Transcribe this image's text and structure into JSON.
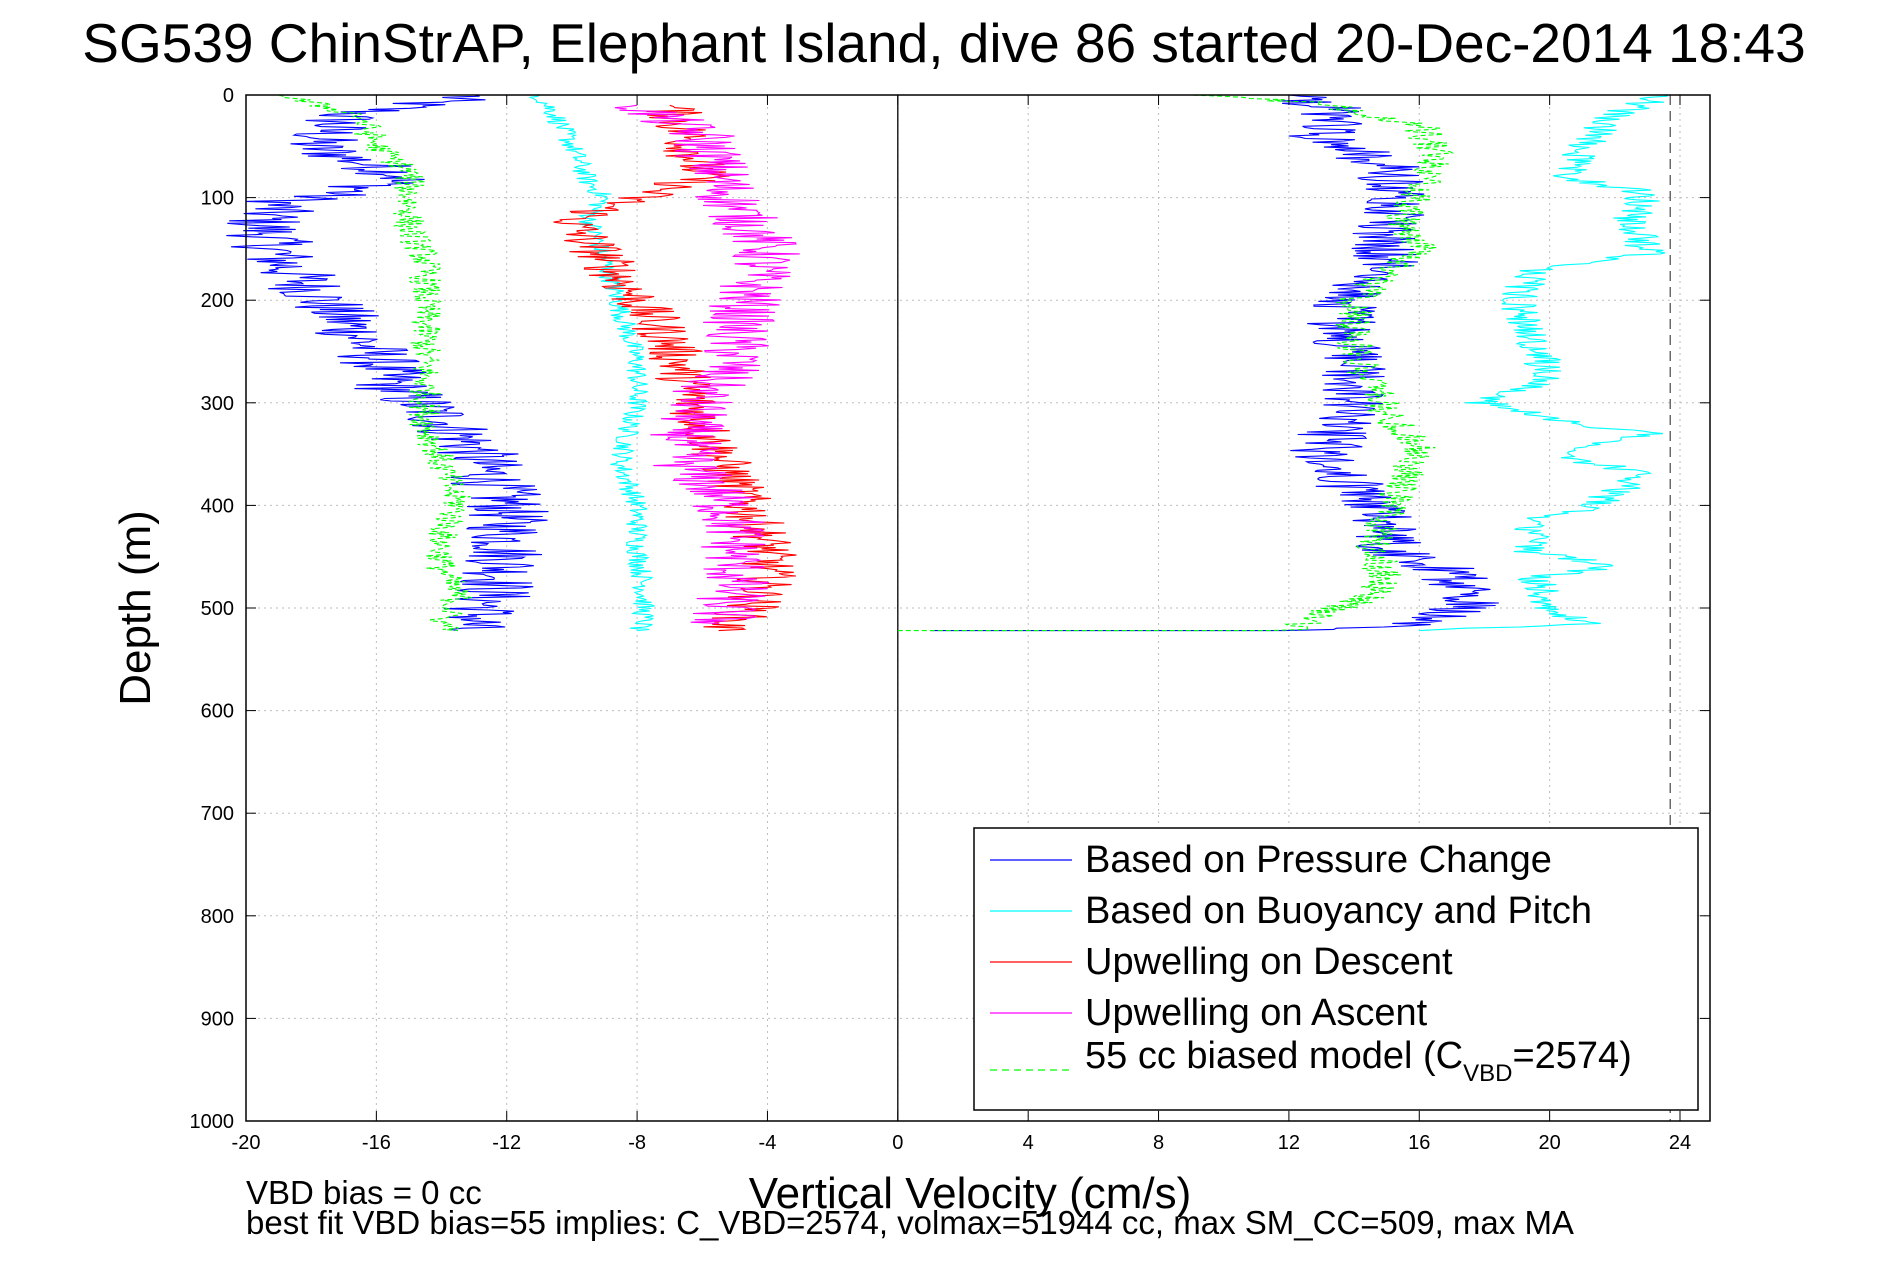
{
  "chart_data": {
    "type": "line",
    "title": "SG539 ChinStrAP, Elephant Island, dive 86 started 20-Dec-2014 18:43",
    "xlabel": "Vertical Velocity (cm/s)",
    "ylabel": "Depth (m)",
    "xlim": [
      -20,
      25
    ],
    "ylim": [
      0,
      1000
    ],
    "y_reversed": true,
    "xticks": [
      -20,
      -16,
      -12,
      -8,
      -4,
      0,
      4,
      8,
      12,
      16,
      20,
      24
    ],
    "yticks": [
      0,
      100,
      200,
      300,
      400,
      500,
      600,
      700,
      800,
      900,
      1000
    ],
    "grid": true,
    "legend_position": "bottom-right",
    "legend": [
      {
        "label": "Based on Pressure Change",
        "color": "#0000ff",
        "dash": "solid"
      },
      {
        "label": "Based on Buoyancy and Pitch",
        "color": "#00ffff",
        "dash": "solid"
      },
      {
        "label": "Upwelling on Descent",
        "color": "#ff0000",
        "dash": "solid"
      },
      {
        "label": "Upwelling on Ascent",
        "color": "#ff00ff",
        "dash": "solid"
      },
      {
        "label_prefix": "55 cc biased model (C",
        "label_sub": "VBD",
        "label_suffix": "=2574)",
        "color": "#00ff00",
        "dash": "dashed"
      }
    ],
    "vertical_lines": [
      {
        "x": 0,
        "color": "#000000",
        "dash": "solid"
      },
      {
        "x": 23.7,
        "color": "#555555",
        "dash": "dashed"
      }
    ],
    "series": [
      {
        "name": "Based on Pressure Change",
        "color": "#0000ff",
        "noise": 1.3,
        "points": [
          [
            -13,
            0
          ],
          [
            -17,
            20
          ],
          [
            -18,
            50
          ],
          [
            -15,
            80
          ],
          [
            -17,
            95
          ],
          [
            -19,
            105
          ],
          [
            -19.5,
            125
          ],
          [
            -19,
            160
          ],
          [
            -18,
            190
          ],
          [
            -17,
            220
          ],
          [
            -16,
            255
          ],
          [
            -15.5,
            285
          ],
          [
            -14,
            315
          ],
          [
            -13,
            345
          ],
          [
            -12.5,
            375
          ],
          [
            -12,
            400
          ],
          [
            -12,
            430
          ],
          [
            -12,
            460
          ],
          [
            -12.5,
            490
          ],
          [
            -13,
            515
          ],
          [
            -13.5,
            522
          ]
        ]
      },
      {
        "name": "Based on Pressure Change",
        "color": "#0000ff",
        "noise": 1.1,
        "points": [
          [
            1,
            522
          ],
          [
            12,
            522
          ],
          [
            16,
            515
          ],
          [
            17.5,
            500
          ],
          [
            17,
            465
          ],
          [
            15,
            440
          ],
          [
            15,
            410
          ],
          [
            14,
            385
          ],
          [
            13,
            355
          ],
          [
            13.5,
            320
          ],
          [
            14,
            290
          ],
          [
            14,
            260
          ],
          [
            13.5,
            230
          ],
          [
            14,
            195
          ],
          [
            15,
            170
          ],
          [
            15,
            135
          ],
          [
            15.5,
            105
          ],
          [
            15,
            70
          ],
          [
            13,
            40
          ],
          [
            13.5,
            15
          ],
          [
            12,
            0
          ]
        ]
      },
      {
        "name": "Based on Buoyancy and Pitch",
        "color": "#00ffff",
        "noise": 0.35,
        "points": [
          [
            -11,
            0
          ],
          [
            -10.5,
            20
          ],
          [
            -10,
            50
          ],
          [
            -9.5,
            85
          ],
          [
            -9,
            100
          ],
          [
            -9.5,
            120
          ],
          [
            -9,
            160
          ],
          [
            -8.5,
            210
          ],
          [
            -8,
            260
          ],
          [
            -8,
            300
          ],
          [
            -8.3,
            330
          ],
          [
            -8.5,
            360
          ],
          [
            -8,
            400
          ],
          [
            -8,
            440
          ],
          [
            -7.8,
            480
          ],
          [
            -7.8,
            515
          ],
          [
            -8,
            522
          ]
        ]
      },
      {
        "name": "Based on Buoyancy and Pitch",
        "color": "#00ffff",
        "noise": 0.6,
        "points": [
          [
            16,
            522
          ],
          [
            21,
            515
          ],
          [
            20,
            500
          ],
          [
            19.5,
            470
          ],
          [
            22,
            460
          ],
          [
            19.5,
            445
          ],
          [
            19.5,
            410
          ],
          [
            21,
            405
          ],
          [
            23,
            370
          ],
          [
            20,
            350
          ],
          [
            23,
            330
          ],
          [
            20,
            315
          ],
          [
            18,
            300
          ],
          [
            20,
            275
          ],
          [
            19.5,
            240
          ],
          [
            19,
            200
          ],
          [
            19.5,
            170
          ],
          [
            23,
            155
          ],
          [
            22.5,
            120
          ],
          [
            23,
            95
          ],
          [
            20.5,
            80
          ],
          [
            21,
            50
          ],
          [
            22,
            20
          ],
          [
            23.5,
            0
          ]
        ]
      },
      {
        "name": "Upwelling on Descent",
        "color": "#ff0000",
        "noise": 0.9,
        "points": [
          [
            -7,
            10
          ],
          [
            -6.5,
            40
          ],
          [
            -6,
            80
          ],
          [
            -9,
            110
          ],
          [
            -10,
            125
          ],
          [
            -9,
            160
          ],
          [
            -8,
            200
          ],
          [
            -7,
            240
          ],
          [
            -6.5,
            280
          ],
          [
            -6,
            320
          ],
          [
            -5.5,
            350
          ],
          [
            -5,
            380
          ],
          [
            -4.5,
            410
          ],
          [
            -4,
            440
          ],
          [
            -4,
            470
          ],
          [
            -4.5,
            500
          ],
          [
            -5.5,
            522
          ]
        ]
      },
      {
        "name": "Upwelling on Ascent",
        "color": "#ff00ff",
        "noise": 1.1,
        "points": [
          [
            -8,
            10
          ],
          [
            -6,
            40
          ],
          [
            -5.5,
            80
          ],
          [
            -5,
            110
          ],
          [
            -4,
            150
          ],
          [
            -4.5,
            190
          ],
          [
            -5,
            230
          ],
          [
            -5,
            260
          ],
          [
            -6,
            290
          ],
          [
            -6.5,
            330
          ],
          [
            -6.5,
            360
          ],
          [
            -5.5,
            390
          ],
          [
            -5,
            420
          ],
          [
            -5,
            450
          ],
          [
            -5,
            480
          ],
          [
            -5.5,
            515
          ]
        ]
      },
      {
        "name": "55 cc biased model (CVBD=2574)",
        "color": "#00ff00",
        "dashed": true,
        "noise": 0.5,
        "points": [
          [
            -19,
            0
          ],
          [
            -16.5,
            20
          ],
          [
            -16,
            50
          ],
          [
            -15,
            75
          ],
          [
            -15,
            100
          ],
          [
            -15,
            130
          ],
          [
            -14.5,
            160
          ],
          [
            -14.5,
            200
          ],
          [
            -14.5,
            250
          ],
          [
            -14.5,
            290
          ],
          [
            -14.5,
            320
          ],
          [
            -14,
            360
          ],
          [
            -13.5,
            400
          ],
          [
            -14,
            430
          ],
          [
            -14,
            460
          ],
          [
            -13.5,
            490
          ],
          [
            -14,
            515
          ],
          [
            -13.5,
            522
          ]
        ]
      },
      {
        "name": "55 cc biased model (CVBD=2574)",
        "color": "#00ff00",
        "dashed": true,
        "noise": 0.6,
        "points": [
          [
            0,
            522
          ],
          [
            12,
            522
          ],
          [
            13,
            505
          ],
          [
            14.5,
            490
          ],
          [
            15,
            470
          ],
          [
            14.5,
            440
          ],
          [
            15,
            410
          ],
          [
            15.5,
            375
          ],
          [
            16,
            345
          ],
          [
            15,
            310
          ],
          [
            14.5,
            280
          ],
          [
            14,
            250
          ],
          [
            14,
            200
          ],
          [
            15,
            175
          ],
          [
            16,
            150
          ],
          [
            15.5,
            120
          ],
          [
            16,
            90
          ],
          [
            16.5,
            60
          ],
          [
            16,
            30
          ],
          [
            13,
            8
          ],
          [
            9,
            0
          ]
        ]
      }
    ]
  },
  "footer": {
    "line1": "VBD bias = 0 cc",
    "line2": "best fit VBD bias=55 implies: C_VBD=2574, volmax=51944 cc, max SM_CC=509, max MA"
  }
}
